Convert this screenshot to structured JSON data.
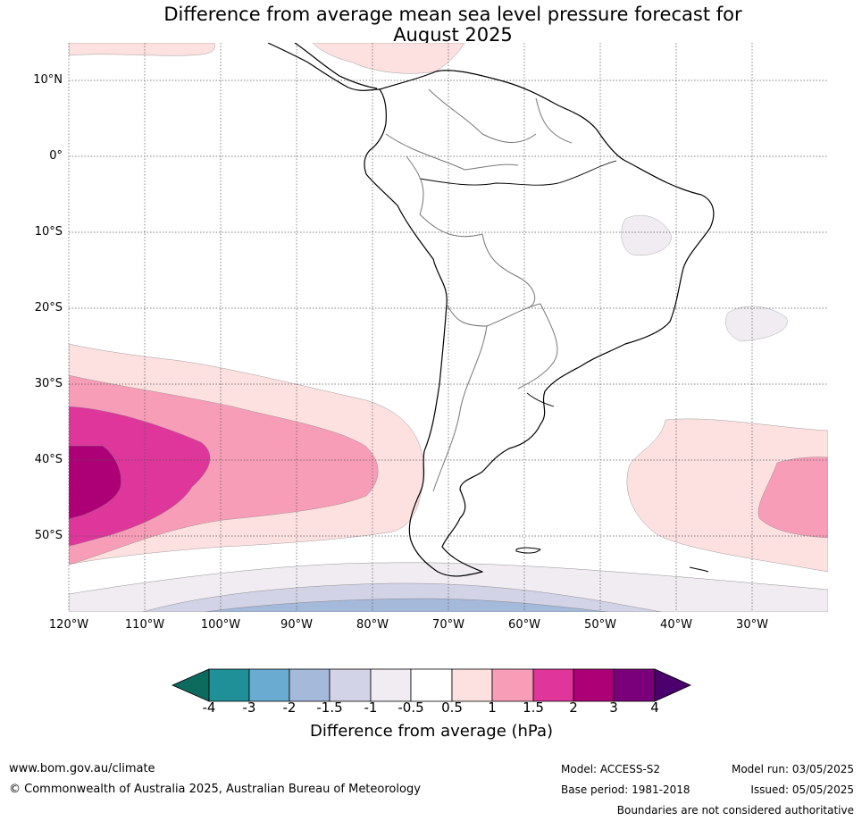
{
  "title_line1": "Difference from average mean sea level pressure forecast for",
  "title_line2": "August 2025",
  "lat_labels": [
    "10°N",
    "0°",
    "10°S",
    "20°S",
    "30°S",
    "40°S",
    "50°S"
  ],
  "lon_labels": [
    "120°W",
    "110°W",
    "100°W",
    "90°W",
    "80°W",
    "70°W",
    "60°W",
    "50°W",
    "40°W",
    "30°W"
  ],
  "colorbar": {
    "label": "Difference from average (hPa)",
    "ticks": [
      "-4",
      "-3",
      "-2",
      "-1.5",
      "-1",
      "-0.5",
      "0.5",
      "1",
      "1.5",
      "2",
      "3",
      "4"
    ],
    "colors": [
      "#0d6b5e",
      "#1f9098",
      "#69abd1",
      "#a5b9da",
      "#d3d3e7",
      "#f0ecf2",
      "#ffffff",
      "#fde0e0",
      "#f89db8",
      "#de369a",
      "#ad0077",
      "#79007a",
      "#4b006e"
    ]
  },
  "map": {
    "lon_range": [
      -120,
      -20
    ],
    "lat_range": [
      -60,
      15
    ],
    "anomaly_regions": [
      {
        "name": "south-pacific-high",
        "max_level": "3",
        "location": "southeast Pacific near 40°S 115°W"
      },
      {
        "name": "south-atlantic-high",
        "max_level": "2",
        "location": "southwest Atlantic near 45°S 25°W"
      },
      {
        "name": "southern-ocean-low",
        "min_level": "-2",
        "location": "south of 55°S"
      },
      {
        "name": "caribbean-high",
        "max_level": "1",
        "location": "Caribbean near 12°N"
      },
      {
        "name": "brazil-weak-low",
        "min_level": "-1",
        "location": "northeast Brazil near 10°S 45°W"
      },
      {
        "name": "atlantic-weak-low",
        "min_level": "-1",
        "location": "South Atlantic near 20°S 30°W"
      }
    ]
  },
  "footer": {
    "website": "www.bom.gov.au/climate",
    "copyright": "© Commonwealth of Australia 2025, Australian Bureau of Meteorology",
    "model": "Model: ACCESS-S2",
    "base_period": "Base period: 1981-2018",
    "model_run": "Model run: 03/05/2025",
    "issued": "Issued: 05/05/2025",
    "disclaimer": "Boundaries are not considered authoritative"
  }
}
